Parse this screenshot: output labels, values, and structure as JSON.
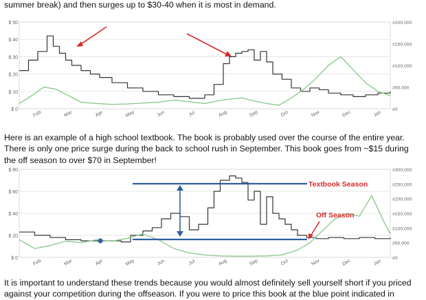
{
  "text": {
    "top_line": "summer break) and then surges up to $30-40 when it is most in demand.",
    "mid_paragraph": "Here is an example of a high school textbook. The book is probably used over the course of the entire year. There is only one price surge during the back to school rush in September. This book goes from ~$15 during the off season to over $70 in September!",
    "bottom_paragraph": "It is important to understand these trends because you would almost definitely sell yourself short if you priced against your competition during the offseason. If you were to price this book at the blue point indicated in"
  },
  "colors": {
    "price_line": "#333333",
    "rank_line": "#8fc98f",
    "arrow_red": "#d62a2a",
    "annotation_blue": "#2e5f9e",
    "grid": "#dedede",
    "axis_text": "#666666"
  },
  "chart_data": [
    {
      "type": "line",
      "y_ticks": [
        "$ 50",
        "$ 40",
        "$ 30",
        "$ 20",
        "$ 10",
        "$ 0"
      ],
      "y2_ticks": [
        "#200,000",
        "#150,000",
        "#100,000",
        "#50,000",
        "#0"
      ],
      "x_ticks": [
        "Feb",
        "Mar",
        "Apr",
        "May",
        "Jun",
        "Jul",
        "Aug",
        "Sep",
        "Oct",
        "Nov",
        "Dec",
        "Jan"
      ],
      "ylim": [
        0,
        50
      ],
      "y2lim": [
        0,
        200000
      ],
      "grid": true,
      "series": [
        {
          "kind": "price",
          "x": [
            0.0,
            0.3,
            0.6,
            0.9,
            1.1,
            1.3,
            1.5,
            1.7,
            2.0,
            2.3,
            2.6,
            3.0,
            3.5,
            4.0,
            4.5,
            5.0,
            5.5,
            6.0,
            6.3,
            6.6,
            6.8,
            7.0,
            7.2,
            7.4,
            7.6,
            7.8,
            8.0,
            8.2,
            8.5,
            8.8,
            9.1,
            9.4,
            9.7,
            10.0,
            10.4,
            10.8,
            11.2,
            11.6,
            12.0
          ],
          "y": [
            22,
            28,
            33,
            42,
            36,
            32,
            28,
            25,
            22,
            20,
            18,
            15,
            12,
            10,
            8,
            7,
            6,
            8,
            14,
            26,
            30,
            32,
            33,
            34,
            28,
            33,
            27,
            20,
            17,
            12,
            10,
            12,
            11,
            9,
            8,
            7,
            8,
            9,
            10
          ]
        },
        {
          "kind": "rank",
          "x": [
            0.0,
            0.4,
            0.8,
            1.2,
            1.6,
            2.0,
            2.5,
            3.0,
            3.5,
            4.0,
            4.5,
            5.0,
            5.5,
            6.0,
            6.4,
            6.8,
            7.2,
            7.6,
            8.0,
            8.4,
            8.8,
            9.2,
            9.6,
            10.0,
            10.4,
            10.8,
            11.2,
            11.6,
            12.0
          ],
          "y": [
            12000,
            30000,
            50000,
            45000,
            30000,
            15000,
            12000,
            10000,
            11000,
            13000,
            15000,
            20000,
            16000,
            12000,
            18000,
            22000,
            25000,
            18000,
            12000,
            8000,
            25000,
            45000,
            70000,
            100000,
            120000,
            90000,
            60000,
            40000,
            30000
          ]
        }
      ],
      "annotations": [
        "red arrow at Mar price peak",
        "red arrow at Aug price peak"
      ]
    },
    {
      "type": "line",
      "y_ticks": [
        "$ 80",
        "$ 60",
        "$ 40",
        "$ 20",
        "$ 0"
      ],
      "y2_ticks": [
        "#300,000",
        "#250,000",
        "#200,000",
        "#150,000",
        "#100,000",
        "#50,000",
        "#0"
      ],
      "x_ticks": [
        "Feb",
        "Mar",
        "Apr",
        "May",
        "Jun",
        "Jul",
        "Aug",
        "Sep",
        "Oct",
        "Nov",
        "Dec",
        "Jan"
      ],
      "ylim": [
        0,
        80
      ],
      "y2lim": [
        0,
        300000
      ],
      "grid": true,
      "series": [
        {
          "kind": "price",
          "x": [
            0.0,
            0.5,
            1.0,
            1.5,
            2.0,
            2.5,
            3.0,
            3.3,
            3.6,
            4.0,
            4.3,
            4.6,
            4.9,
            5.2,
            5.5,
            5.8,
            6.1,
            6.3,
            6.5,
            6.8,
            7.0,
            7.2,
            7.4,
            7.6,
            7.8,
            8.0,
            8.2,
            8.4,
            8.6,
            8.8,
            9.0,
            9.3,
            9.6,
            10.0,
            10.5,
            11.0,
            11.5,
            12.0
          ],
          "y": [
            23,
            20,
            18,
            16,
            15,
            15,
            15,
            14,
            20,
            24,
            27,
            35,
            40,
            37,
            25,
            30,
            45,
            60,
            70,
            74,
            72,
            68,
            52,
            60,
            30,
            55,
            40,
            35,
            30,
            25,
            20,
            18,
            17,
            18,
            17,
            18,
            17,
            18
          ]
        },
        {
          "kind": "rank",
          "x": [
            0.0,
            0.5,
            1.0,
            1.5,
            2.0,
            2.5,
            3.0,
            3.5,
            4.0,
            4.5,
            5.0,
            5.5,
            6.0,
            6.5,
            7.0,
            7.5,
            8.0,
            8.5,
            9.0,
            9.4,
            9.8,
            10.2,
            10.6,
            11.0,
            11.4,
            11.8,
            12.0
          ],
          "y": [
            60000,
            30000,
            40000,
            55000,
            50000,
            60000,
            55000,
            65000,
            80000,
            60000,
            30000,
            15000,
            8000,
            5000,
            4000,
            4000,
            5000,
            8000,
            25000,
            50000,
            90000,
            130000,
            150000,
            140000,
            210000,
            120000,
            80000
          ]
        }
      ],
      "annotations": [
        "Textbook Season",
        "Off Season"
      ]
    }
  ]
}
